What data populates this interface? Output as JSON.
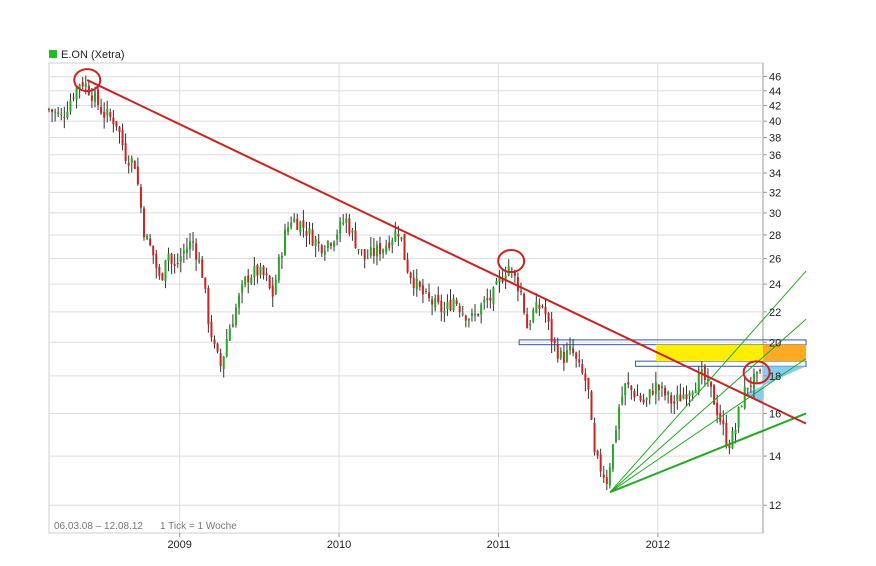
{
  "chart_data": {
    "type": "candlestick",
    "title": "",
    "legend": {
      "label": "E.ON (Xetra)",
      "color": "#22bb22",
      "placement": "top-left"
    },
    "footer": {
      "range_text": "06.03.08 – 12.08.12",
      "tick_text": "1 Tick = 1 Woche"
    },
    "x_axis": {
      "start": 2008.18,
      "end": 2012.66,
      "tick_labels": [
        "2009",
        "2010",
        "2011",
        "2012"
      ],
      "ticks": [
        2009,
        2010,
        2011,
        2012
      ]
    },
    "y_axis": {
      "scale": "log",
      "min": 11,
      "max": 48,
      "position": "right",
      "tick_labels": [
        "12",
        "14",
        "16",
        "18",
        "20",
        "22",
        "24",
        "26",
        "28",
        "30",
        "32",
        "34",
        "36",
        "38",
        "40",
        "42",
        "44",
        "46"
      ],
      "ticks": [
        12,
        14,
        16,
        18,
        20,
        22,
        24,
        26,
        28,
        30,
        32,
        34,
        36,
        38,
        40,
        42,
        44,
        46
      ]
    },
    "grid": true,
    "colors": {
      "up": "#22aa22",
      "down": "#cc2222",
      "grid": "#dddddd",
      "resistance": "#cc2222",
      "support": "#22aa22",
      "fan": "#22aa22",
      "highlight": "#ffee00",
      "highlight_orange": "#ffaa22",
      "highlight_blue": "#88ccee",
      "zone_border": "#3355aa"
    },
    "price_path": [
      [
        2008.18,
        41.5
      ],
      [
        2008.26,
        40.5
      ],
      [
        2008.33,
        43.5
      ],
      [
        2008.38,
        45.5
      ],
      [
        2008.44,
        44.0
      ],
      [
        2008.52,
        41.0
      ],
      [
        2008.6,
        40.0
      ],
      [
        2008.66,
        36.0
      ],
      [
        2008.72,
        35.0
      ],
      [
        2008.78,
        28.0
      ],
      [
        2008.83,
        26.5
      ],
      [
        2008.88,
        24.0
      ],
      [
        2008.92,
        27.0
      ],
      [
        2008.96,
        25.0
      ],
      [
        2009.02,
        26.5
      ],
      [
        2009.08,
        27.5
      ],
      [
        2009.14,
        25.0
      ],
      [
        2009.18,
        21.5
      ],
      [
        2009.22,
        19.5
      ],
      [
        2009.26,
        18.5
      ],
      [
        2009.3,
        20.5
      ],
      [
        2009.36,
        22.5
      ],
      [
        2009.42,
        24.5
      ],
      [
        2009.48,
        25.0
      ],
      [
        2009.54,
        24.5
      ],
      [
        2009.58,
        23.0
      ],
      [
        2009.62,
        25.5
      ],
      [
        2009.66,
        28.0
      ],
      [
        2009.7,
        29.5
      ],
      [
        2009.76,
        29.0
      ],
      [
        2009.82,
        28.0
      ],
      [
        2009.88,
        27.0
      ],
      [
        2009.94,
        27.5
      ],
      [
        2010.0,
        28.5
      ],
      [
        2010.04,
        29.5
      ],
      [
        2010.1,
        27.5
      ],
      [
        2010.16,
        26.0
      ],
      [
        2010.22,
        26.5
      ],
      [
        2010.28,
        27.0
      ],
      [
        2010.34,
        28.0
      ],
      [
        2010.38,
        28.5
      ],
      [
        2010.42,
        25.5
      ],
      [
        2010.48,
        24.0
      ],
      [
        2010.54,
        23.0
      ],
      [
        2010.6,
        22.5
      ],
      [
        2010.66,
        22.0
      ],
      [
        2010.72,
        23.0
      ],
      [
        2010.78,
        22.0
      ],
      [
        2010.84,
        21.5
      ],
      [
        2010.9,
        22.5
      ],
      [
        2010.96,
        23.0
      ],
      [
        2011.02,
        24.5
      ],
      [
        2011.06,
        25.5
      ],
      [
        2011.1,
        24.5
      ],
      [
        2011.14,
        23.5
      ],
      [
        2011.18,
        21.0
      ],
      [
        2011.22,
        22.0
      ],
      [
        2011.28,
        22.5
      ],
      [
        2011.34,
        20.0
      ],
      [
        2011.4,
        19.0
      ],
      [
        2011.46,
        19.5
      ],
      [
        2011.5,
        18.5
      ],
      [
        2011.56,
        17.5
      ],
      [
        2011.6,
        14.0
      ],
      [
        2011.64,
        13.5
      ],
      [
        2011.68,
        13.0
      ],
      [
        2011.72,
        14.5
      ],
      [
        2011.76,
        16.5
      ],
      [
        2011.8,
        17.5
      ],
      [
        2011.86,
        17.0
      ],
      [
        2011.92,
        16.5
      ],
      [
        2011.98,
        17.5
      ],
      [
        2012.04,
        17.0
      ],
      [
        2012.1,
        16.5
      ],
      [
        2012.16,
        17.0
      ],
      [
        2012.22,
        17.5
      ],
      [
        2012.28,
        18.0
      ],
      [
        2012.34,
        17.0
      ],
      [
        2012.4,
        15.5
      ],
      [
        2012.44,
        14.5
      ],
      [
        2012.48,
        15.0
      ],
      [
        2012.52,
        16.5
      ],
      [
        2012.56,
        17.5
      ],
      [
        2012.62,
        17.8
      ],
      [
        2012.66,
        18.0
      ]
    ],
    "resistance_line": [
      [
        2008.42,
        45.5
      ],
      [
        2012.93,
        15.5
      ]
    ],
    "support_line": [
      [
        2011.7,
        12.5
      ],
      [
        2012.93,
        16.0
      ]
    ],
    "fan_lines": [
      [
        [
          2011.7,
          12.5
        ],
        [
          2012.93,
          25.0
        ]
      ],
      [
        [
          2011.7,
          12.5
        ],
        [
          2012.93,
          21.5
        ]
      ],
      [
        [
          2011.7,
          12.5
        ],
        [
          2012.93,
          19.0
        ]
      ]
    ],
    "circles": [
      [
        2008.42,
        45.5
      ],
      [
        2011.08,
        25.8
      ],
      [
        2012.62,
        18.2
      ]
    ],
    "zones": [
      {
        "x0": 2011.13,
        "x1": 2012.93,
        "y0": 19.85,
        "y1": 20.15,
        "fill": "none"
      },
      {
        "x0": 2011.86,
        "x1": 2012.93,
        "y0": 18.55,
        "y1": 18.85,
        "fill": "none"
      },
      {
        "x0": 2011.99,
        "x1": 2012.93,
        "y0": 18.85,
        "y1": 19.85,
        "fill": "#ffee00"
      },
      {
        "x0": 2012.66,
        "x1": 2012.93,
        "y0": 18.85,
        "y1": 19.85,
        "fill": "#ffaa22"
      }
    ]
  }
}
